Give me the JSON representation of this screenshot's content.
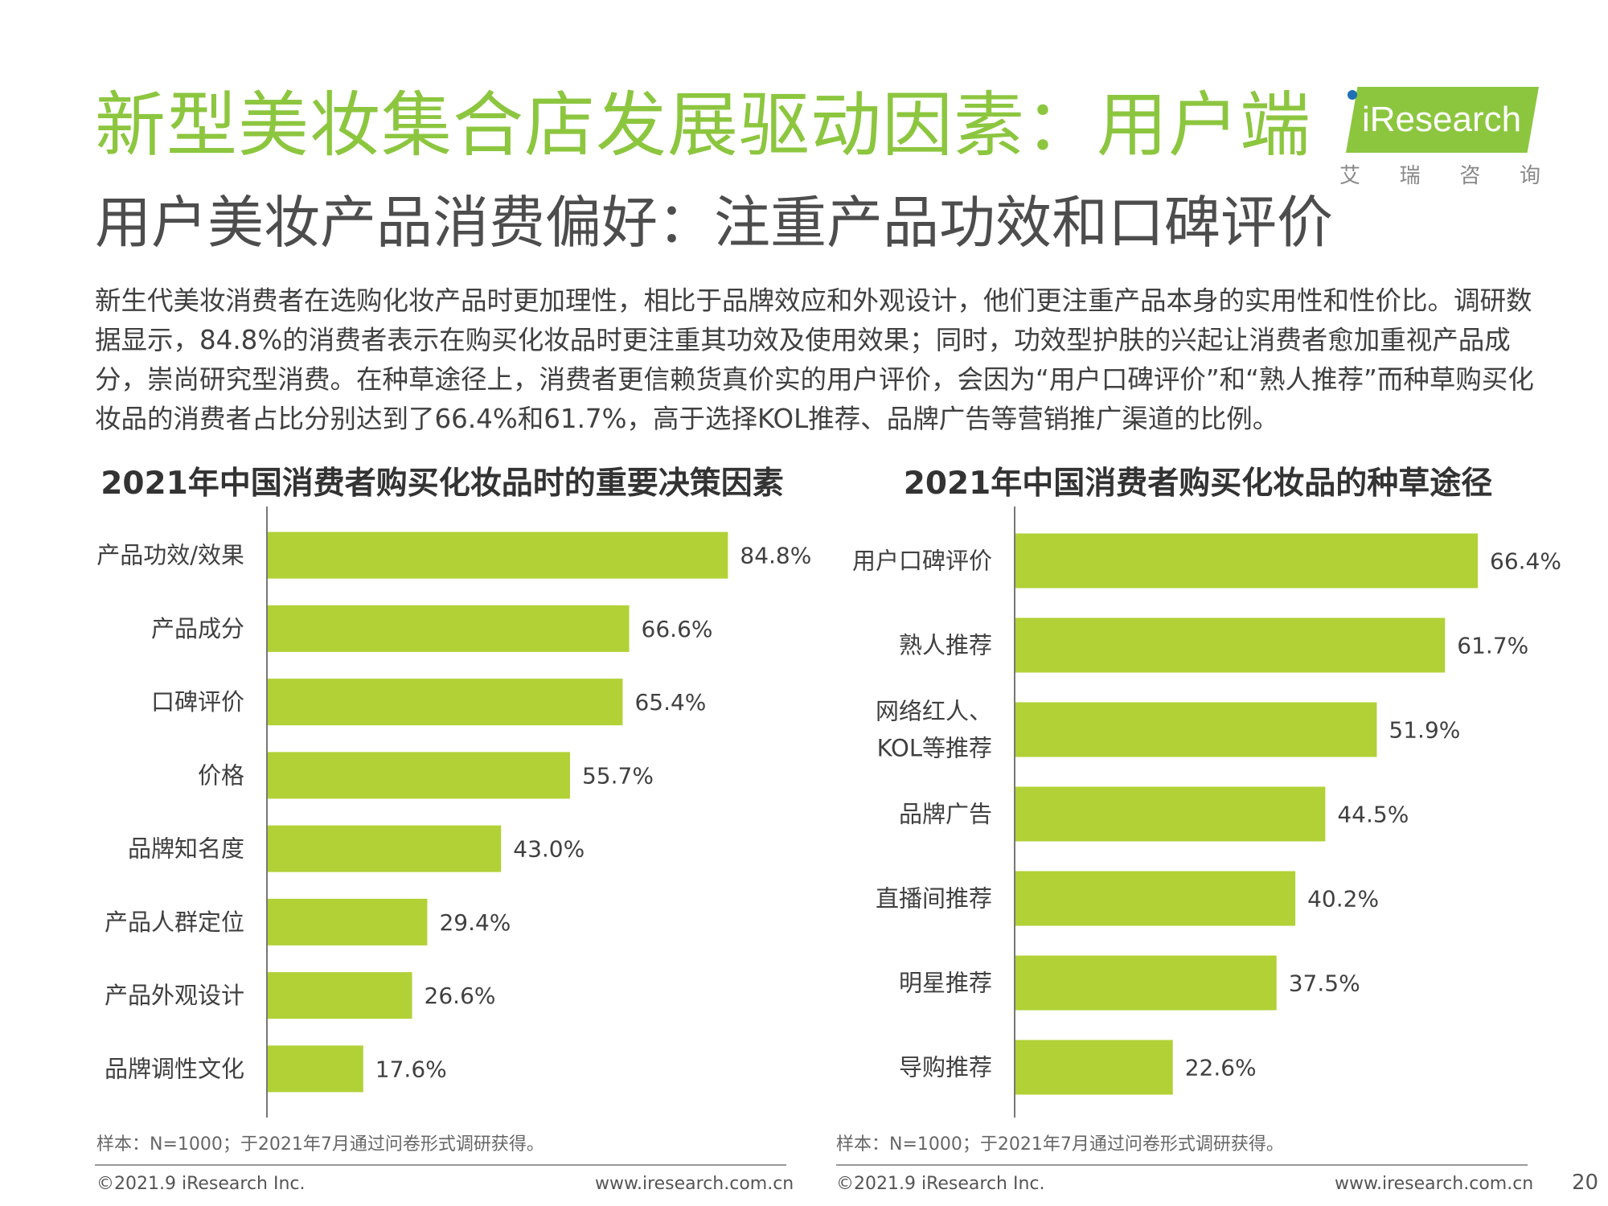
{
  "header": {
    "title": "新型美妆集合店发展驱动因素：用户端",
    "subtitle": "用户美妆产品消费偏好：注重产品功效和口碑评价"
  },
  "logo": {
    "brand": "iResearch",
    "cn": [
      "艾",
      "瑞",
      "咨",
      "询"
    ],
    "color": "#8cc63f"
  },
  "intro": "新生代美妆消费者在选购化妆产品时更加理性，相比于品牌效应和外观设计，他们更注重产品本身的实用性和性价比。调研数据显示，84.8%的消费者表示在购买化妆品时更注重其功效及使用效果；同时，功效型护肤的兴起让消费者愈加重视产品成分，崇尚研究型消费。在种草途径上，消费者更信赖货真价实的用户评价，会因为“用户口碑评价”和“熟人推荐”而种草购买化妆品的消费者占比分别达到了66.4%和61.7%，高于选择KOL推荐、品牌广告等营销推广渠道的比例。",
  "chart_data": [
    {
      "type": "bar",
      "orientation": "horizontal",
      "title": "2021年中国消费者购买化妆品时的重要决策因素",
      "categories": [
        "产品功效/效果",
        "产品成分",
        "口碑评价",
        "价格",
        "品牌知名度",
        "产品人群定位",
        "产品外观设计",
        "品牌调性文化"
      ],
      "values": [
        84.8,
        66.6,
        65.4,
        55.7,
        43.0,
        29.4,
        26.6,
        17.6
      ],
      "value_labels": [
        "84.8%",
        "66.6%",
        "65.4%",
        "55.7%",
        "43.0%",
        "29.4%",
        "26.6%",
        "17.6%"
      ],
      "xlim": [
        0,
        100
      ],
      "color": "#b1d136",
      "grid": false,
      "note": "样本：N=1000；于2021年7月通过问卷形式调研获得。"
    },
    {
      "type": "bar",
      "orientation": "horizontal",
      "title": "2021年中国消费者购买化妆品的种草途径",
      "categories": [
        "用户口碑评价",
        "熟人推荐",
        [
          "网络红人、",
          "KOL等推荐"
        ],
        "品牌广告",
        "直播间推荐",
        "明星推荐",
        "导购推荐"
      ],
      "values": [
        66.4,
        61.7,
        51.9,
        44.5,
        40.2,
        37.5,
        22.6
      ],
      "value_labels": [
        "66.4%",
        "61.7%",
        "51.9%",
        "44.5%",
        "40.2%",
        "37.5%",
        "22.6%"
      ],
      "xlim": [
        0,
        66.4
      ],
      "color": "#b1d136",
      "grid": false,
      "note": "样本：N=1000；于2021年7月通过问卷形式调研获得。"
    }
  ],
  "footer": {
    "copyright": "©2021.9 iResearch Inc.",
    "website": "www.iresearch.com.cn",
    "page_number": "20"
  }
}
